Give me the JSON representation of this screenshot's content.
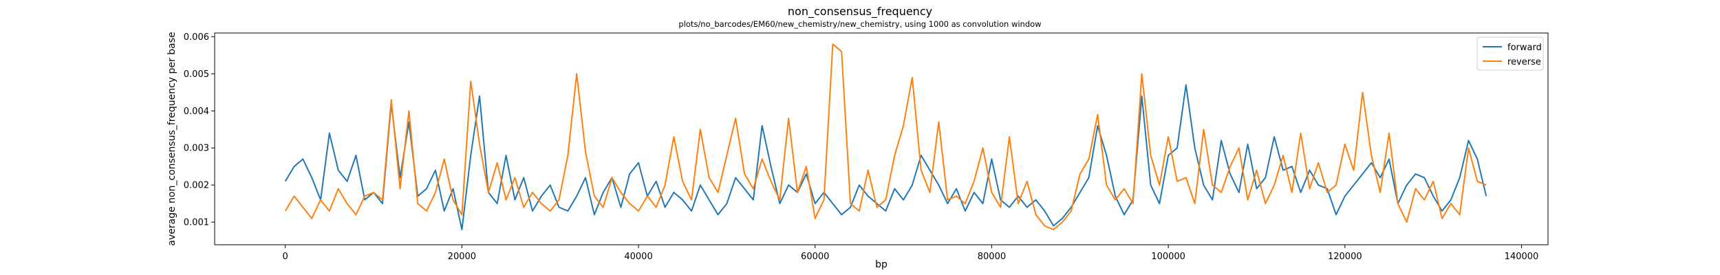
{
  "chart_data": {
    "type": "line",
    "title": "non_consensus_frequency",
    "subtitle": "plots/no_barcodes/EM60/new_chemistry/new_chemistry, using 1000 as convolution window",
    "xlabel": "bp",
    "ylabel": "average non_consensus_frequency per base",
    "xlim": [
      -8000,
      143000
    ],
    "ylim": [
      0.00039,
      0.0061
    ],
    "xticks": [
      0,
      20000,
      40000,
      60000,
      80000,
      100000,
      120000,
      140000
    ],
    "xtick_labels": [
      "0",
      "20000",
      "40000",
      "60000",
      "80000",
      "100000",
      "120000",
      "140000"
    ],
    "yticks": [
      0.001,
      0.002,
      0.003,
      0.004,
      0.005,
      0.006
    ],
    "ytick_labels": [
      "0.001",
      "0.002",
      "0.003",
      "0.004",
      "0.005",
      "0.006"
    ],
    "grid": false,
    "legend_position": "top-right",
    "series": [
      {
        "name": "forward",
        "color": "#1f77b4",
        "x": [
          0,
          1000,
          2000,
          3000,
          4000,
          5000,
          6000,
          7000,
          8000,
          9000,
          10000,
          11000,
          12000,
          13000,
          14000,
          15000,
          16000,
          17000,
          18000,
          19000,
          20000,
          21000,
          22000,
          23000,
          24000,
          25000,
          26000,
          27000,
          28000,
          29000,
          30000,
          31000,
          32000,
          33000,
          34000,
          35000,
          36000,
          37000,
          38000,
          39000,
          40000,
          41000,
          42000,
          43000,
          44000,
          45000,
          46000,
          47000,
          48000,
          49000,
          50000,
          51000,
          52000,
          53000,
          54000,
          55000,
          56000,
          57000,
          58000,
          59000,
          60000,
          61000,
          62000,
          63000,
          64000,
          65000,
          66000,
          67000,
          68000,
          69000,
          70000,
          71000,
          72000,
          73000,
          74000,
          75000,
          76000,
          77000,
          78000,
          79000,
          80000,
          81000,
          82000,
          83000,
          84000,
          85000,
          86000,
          87000,
          88000,
          89000,
          90000,
          91000,
          92000,
          93000,
          94000,
          95000,
          96000,
          97000,
          98000,
          99000,
          100000,
          101000,
          102000,
          103000,
          104000,
          105000,
          106000,
          107000,
          108000,
          109000,
          110000,
          111000,
          112000,
          113000,
          114000,
          115000,
          116000,
          117000,
          118000,
          119000,
          120000,
          121000,
          122000,
          123000,
          124000,
          125000,
          126000,
          127000,
          128000,
          129000,
          130000,
          131000,
          132000,
          133000,
          134000,
          135000,
          136000
        ],
        "y": [
          0.0021,
          0.0025,
          0.0027,
          0.0022,
          0.0016,
          0.0034,
          0.0024,
          0.0021,
          0.0028,
          0.0016,
          0.0018,
          0.0015,
          0.0042,
          0.0022,
          0.0037,
          0.0017,
          0.0019,
          0.0024,
          0.0013,
          0.0019,
          0.0008,
          0.0028,
          0.0044,
          0.0018,
          0.0015,
          0.0028,
          0.0016,
          0.0022,
          0.0013,
          0.0017,
          0.002,
          0.0014,
          0.0013,
          0.0017,
          0.0022,
          0.0012,
          0.0018,
          0.0022,
          0.0014,
          0.0023,
          0.0026,
          0.0017,
          0.0021,
          0.0014,
          0.0018,
          0.0016,
          0.0013,
          0.002,
          0.0016,
          0.0012,
          0.0015,
          0.0022,
          0.0019,
          0.0016,
          0.0036,
          0.0025,
          0.0015,
          0.002,
          0.0018,
          0.0023,
          0.0015,
          0.0018,
          0.0015,
          0.0012,
          0.0014,
          0.002,
          0.0017,
          0.0015,
          0.0013,
          0.0019,
          0.0016,
          0.002,
          0.0028,
          0.0024,
          0.002,
          0.0015,
          0.0019,
          0.0013,
          0.0018,
          0.0015,
          0.0027,
          0.0016,
          0.0014,
          0.0017,
          0.0014,
          0.0016,
          0.0013,
          0.0009,
          0.0011,
          0.0014,
          0.0018,
          0.0022,
          0.0036,
          0.0028,
          0.0017,
          0.0012,
          0.0016,
          0.0044,
          0.002,
          0.0015,
          0.0028,
          0.003,
          0.0047,
          0.003,
          0.002,
          0.0016,
          0.0032,
          0.0023,
          0.0018,
          0.0031,
          0.0019,
          0.0022,
          0.0033,
          0.0024,
          0.0025,
          0.0018,
          0.0024,
          0.002,
          0.0019,
          0.0012,
          0.0017,
          0.002,
          0.0023,
          0.0026,
          0.0022,
          0.0027,
          0.0015,
          0.002,
          0.0023,
          0.0022,
          0.0017,
          0.0013,
          0.0016,
          0.0022,
          0.0032,
          0.0027,
          0.0017
        ]
      },
      {
        "name": "reverse",
        "color": "#ff7f0e",
        "x": [
          0,
          1000,
          2000,
          3000,
          4000,
          5000,
          6000,
          7000,
          8000,
          9000,
          10000,
          11000,
          12000,
          13000,
          14000,
          15000,
          16000,
          17000,
          18000,
          19000,
          20000,
          21000,
          22000,
          23000,
          24000,
          25000,
          26000,
          27000,
          28000,
          29000,
          30000,
          31000,
          32000,
          33000,
          34000,
          35000,
          36000,
          37000,
          38000,
          39000,
          40000,
          41000,
          42000,
          43000,
          44000,
          45000,
          46000,
          47000,
          48000,
          49000,
          50000,
          51000,
          52000,
          53000,
          54000,
          55000,
          56000,
          57000,
          58000,
          59000,
          60000,
          61000,
          62000,
          63000,
          64000,
          65000,
          66000,
          67000,
          68000,
          69000,
          70000,
          71000,
          72000,
          73000,
          74000,
          75000,
          76000,
          77000,
          78000,
          79000,
          80000,
          81000,
          82000,
          83000,
          84000,
          85000,
          86000,
          87000,
          88000,
          89000,
          90000,
          91000,
          92000,
          93000,
          94000,
          95000,
          96000,
          97000,
          98000,
          99000,
          100000,
          101000,
          102000,
          103000,
          104000,
          105000,
          106000,
          107000,
          108000,
          109000,
          110000,
          111000,
          112000,
          113000,
          114000,
          115000,
          116000,
          117000,
          118000,
          119000,
          120000,
          121000,
          122000,
          123000,
          124000,
          125000,
          126000,
          127000,
          128000,
          129000,
          130000,
          131000,
          132000,
          133000,
          134000,
          135000,
          136000
        ],
        "y": [
          0.0013,
          0.0017,
          0.0014,
          0.0011,
          0.0016,
          0.0013,
          0.0019,
          0.0015,
          0.0012,
          0.0017,
          0.0018,
          0.0016,
          0.0043,
          0.0019,
          0.004,
          0.0015,
          0.0013,
          0.0018,
          0.0027,
          0.0016,
          0.0012,
          0.0048,
          0.0031,
          0.0018,
          0.0026,
          0.0016,
          0.0022,
          0.0014,
          0.0018,
          0.0015,
          0.0013,
          0.0016,
          0.0028,
          0.005,
          0.0029,
          0.0017,
          0.0014,
          0.0022,
          0.0018,
          0.0015,
          0.0013,
          0.0017,
          0.0014,
          0.002,
          0.0033,
          0.0021,
          0.0016,
          0.0035,
          0.0022,
          0.0018,
          0.0028,
          0.0038,
          0.0023,
          0.0019,
          0.0027,
          0.0021,
          0.0016,
          0.0038,
          0.0018,
          0.0025,
          0.0011,
          0.0016,
          0.0058,
          0.0056,
          0.0015,
          0.0013,
          0.0024,
          0.0014,
          0.0016,
          0.0028,
          0.0036,
          0.0049,
          0.0024,
          0.0018,
          0.0037,
          0.0016,
          0.0017,
          0.0015,
          0.0021,
          0.003,
          0.0018,
          0.0014,
          0.0033,
          0.0015,
          0.0021,
          0.0012,
          0.0009,
          0.0008,
          0.001,
          0.0013,
          0.0023,
          0.0027,
          0.0039,
          0.002,
          0.0016,
          0.0019,
          0.0015,
          0.005,
          0.0028,
          0.002,
          0.0033,
          0.0021,
          0.0022,
          0.0015,
          0.0035,
          0.002,
          0.0018,
          0.0025,
          0.003,
          0.0016,
          0.0024,
          0.0015,
          0.002,
          0.0028,
          0.0018,
          0.0034,
          0.0019,
          0.0026,
          0.0018,
          0.002,
          0.0031,
          0.0024,
          0.0045,
          0.0028,
          0.0018,
          0.0034,
          0.0015,
          0.001,
          0.0019,
          0.0016,
          0.0021,
          0.0011,
          0.0015,
          0.0012,
          0.003,
          0.0021,
          0.002
        ]
      }
    ]
  }
}
